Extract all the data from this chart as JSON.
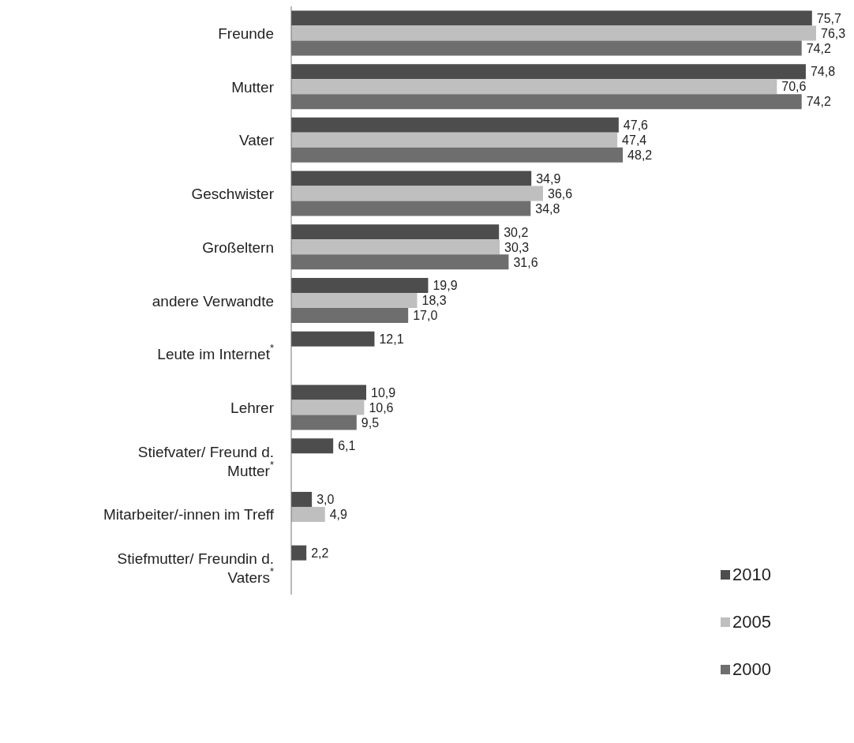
{
  "chart_data": {
    "type": "bar",
    "orientation": "horizontal",
    "categories": [
      "Freunde",
      "Mutter",
      "Vater",
      "Geschwister",
      "Großeltern",
      "andere Verwandte",
      "Leute im Internet$^{*}$",
      "Lehrer",
      "Stiefvater/ Freund d. Mutter$^{*}$",
      "Mitarbeiter/-innen im Treff",
      "Stiefmutter/ Freundin d. Vaters$^{*}$"
    ],
    "series": [
      {
        "name": "2010",
        "color": "#4d4d4d",
        "values": [
          75.7,
          74.8,
          47.6,
          34.9,
          30.2,
          19.9,
          12.1,
          10.9,
          6.1,
          3.0,
          2.2
        ],
        "value_labels": [
          "75,7",
          "74,8",
          "47,6",
          "34,9",
          "30,2",
          "19,9",
          "12,1",
          "10,9",
          "6,1",
          "3,0",
          "2,2"
        ]
      },
      {
        "name": "2005",
        "color": "#bfbfbf",
        "values": [
          76.3,
          70.6,
          47.4,
          36.6,
          30.3,
          18.3,
          null,
          10.6,
          null,
          4.9,
          null
        ],
        "value_labels": [
          "76,3",
          "70,6",
          "47,4",
          "36,6",
          "30,3",
          "18,3",
          null,
          "10,6",
          null,
          "4,9",
          null
        ]
      },
      {
        "name": "2000",
        "color": "#6e6e6e",
        "values": [
          74.2,
          74.2,
          48.2,
          34.8,
          31.6,
          17.0,
          null,
          9.5,
          null,
          null,
          null
        ],
        "value_labels": [
          "74,2",
          "74,2",
          "48,2",
          "34,8",
          "31,6",
          "17,0",
          null,
          "9,5",
          null,
          null,
          null
        ]
      }
    ],
    "legend": "bottom right",
    "grid": false
  }
}
